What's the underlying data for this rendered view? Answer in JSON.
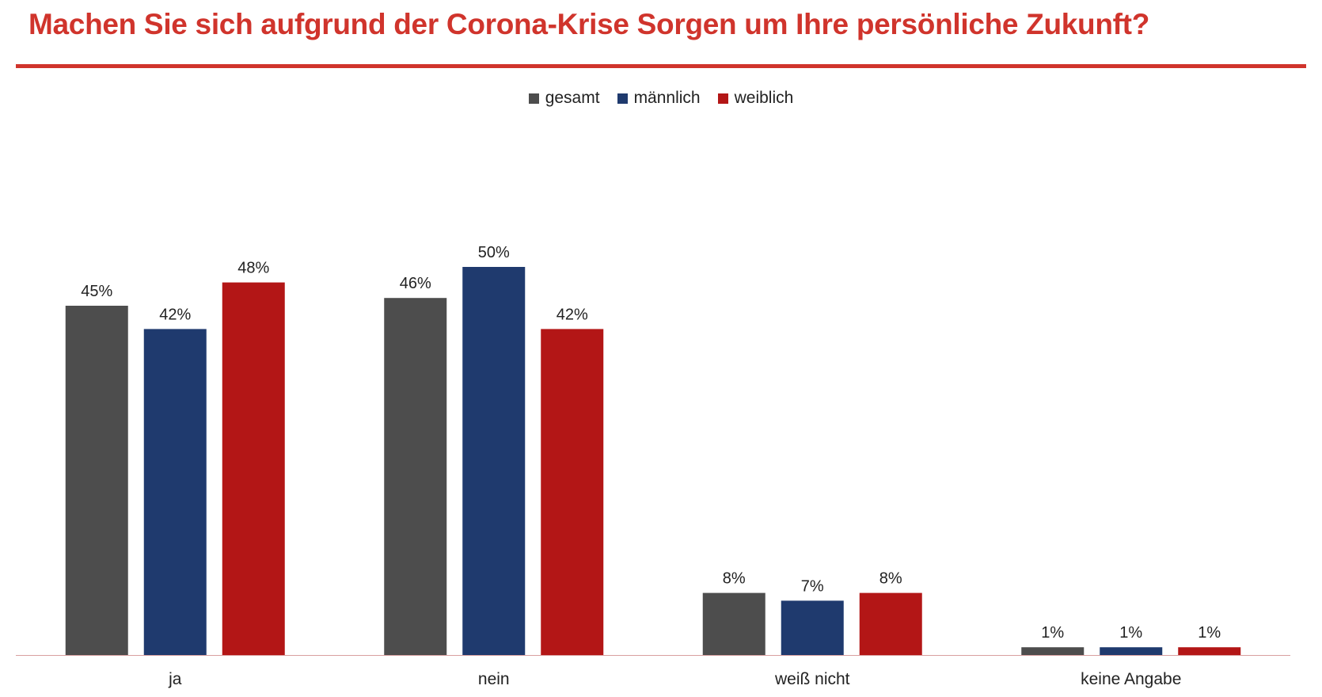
{
  "chart_data": {
    "type": "bar",
    "title": "Machen Sie sich aufgrund der Corona-Krise Sorgen um Ihre persönliche Zukunft?",
    "categories": [
      "ja",
      "nein",
      "weiß nicht",
      "keine Angabe"
    ],
    "series": [
      {
        "name": "gesamt",
        "color": "#4d4d4d",
        "values": [
          45,
          46,
          8,
          1
        ],
        "labels": [
          "45%",
          "46%",
          "8%",
          "1%"
        ]
      },
      {
        "name": "männlich",
        "color": "#1f3a6e",
        "values": [
          42,
          50,
          7,
          1
        ],
        "labels": [
          "42%",
          "50%",
          "7%",
          "1%"
        ]
      },
      {
        "name": "weiblich",
        "color": "#b31616",
        "values": [
          48,
          42,
          8,
          1
        ],
        "labels": [
          "48%",
          "42%",
          "8%",
          "1%"
        ]
      }
    ],
    "ylim": [
      0,
      60
    ],
    "legend_position": "top-center",
    "grid": false,
    "accent_color": "#d0342c"
  }
}
